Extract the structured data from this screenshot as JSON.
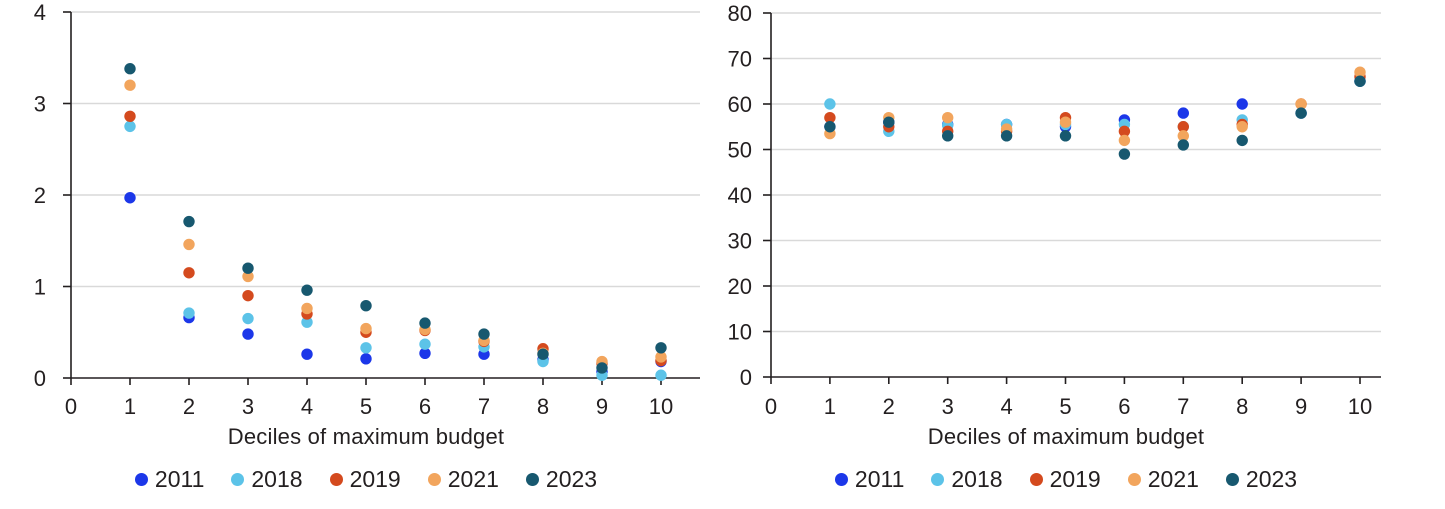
{
  "figure": {
    "background": "#ffffff",
    "axis_color": "#231f20",
    "gridline_color": "#d9d9d9"
  },
  "chart_data": [
    {
      "type": "scatter",
      "panel": "left",
      "xlabel": "Deciles of maximum budget",
      "x": [
        1,
        2,
        3,
        4,
        5,
        6,
        7,
        8,
        9,
        10
      ],
      "xticks": [
        "0",
        "1",
        "2",
        "3",
        "4",
        "5",
        "6",
        "7",
        "8",
        "9",
        "10"
      ],
      "yticks": [
        "0",
        "1",
        "2",
        "3",
        "4"
      ],
      "ylim": [
        0,
        4
      ],
      "xlim": [
        0,
        10
      ],
      "grid": true,
      "legend_position": "bottom",
      "series": [
        {
          "name": "2011",
          "color": "#1c37e9",
          "values": [
            1.97,
            0.66,
            0.48,
            0.26,
            0.21,
            0.27,
            0.26,
            0.2,
            0.07,
            0.18
          ]
        },
        {
          "name": "2018",
          "color": "#5cc3e8",
          "values": [
            2.75,
            0.71,
            0.65,
            0.61,
            0.33,
            0.37,
            0.34,
            0.18,
            0.03,
            0.03
          ]
        },
        {
          "name": "2019",
          "color": "#d44a1e",
          "values": [
            2.86,
            1.15,
            0.9,
            0.7,
            0.5,
            0.52,
            0.4,
            0.32,
            0.16,
            0.19
          ]
        },
        {
          "name": "2021",
          "color": "#f2a55d",
          "values": [
            3.2,
            1.46,
            1.11,
            0.76,
            0.54,
            0.53,
            0.41,
            0.27,
            0.18,
            0.23
          ]
        },
        {
          "name": "2023",
          "color": "#17586f",
          "values": [
            3.38,
            1.71,
            1.2,
            0.96,
            0.79,
            0.6,
            0.48,
            0.26,
            0.11,
            0.33
          ]
        }
      ]
    },
    {
      "type": "scatter",
      "panel": "right",
      "xlabel": "Deciles of maximum budget",
      "x": [
        1,
        2,
        3,
        4,
        5,
        6,
        7,
        8,
        9,
        10
      ],
      "xticks": [
        "0",
        "1",
        "2",
        "3",
        "4",
        "5",
        "6",
        "7",
        "8",
        "9",
        "10"
      ],
      "yticks": [
        "0",
        "10",
        "20",
        "30",
        "40",
        "50",
        "60",
        "70",
        "80"
      ],
      "ylim": [
        0,
        80
      ],
      "xlim": [
        0,
        10
      ],
      "grid": true,
      "legend_position": "bottom",
      "series": [
        {
          "name": "2011",
          "color": "#1c37e9",
          "values": [
            55,
            56,
            55.5,
            55.5,
            55,
            56.5,
            58,
            60,
            58,
            65
          ]
        },
        {
          "name": "2018",
          "color": "#5cc3e8",
          "values": [
            60,
            54,
            55.3,
            55.5,
            55.5,
            55.5,
            55,
            56.5,
            58,
            65
          ]
        },
        {
          "name": "2019",
          "color": "#d44a1e",
          "values": [
            57,
            55,
            54,
            54,
            57,
            54,
            55,
            55.5,
            60,
            66
          ]
        },
        {
          "name": "2021",
          "color": "#f2a55d",
          "values": [
            53.5,
            57,
            57,
            54.5,
            56,
            52,
            53,
            55,
            60,
            67
          ]
        },
        {
          "name": "2023",
          "color": "#17586f",
          "values": [
            55,
            56,
            53,
            53,
            53,
            49,
            51,
            52,
            58,
            65
          ]
        }
      ]
    }
  ]
}
